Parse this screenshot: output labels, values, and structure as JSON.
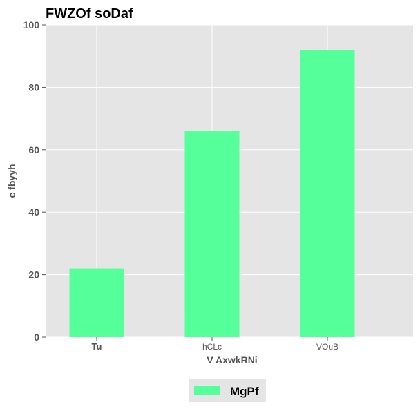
{
  "chart_data": {
    "type": "bar",
    "title": "FWZOf soDaf",
    "xlabel": "V AxwkRNi",
    "ylabel": "c fbyyh",
    "categories": [
      "Tu",
      "hCLc",
      "VOuB"
    ],
    "series": [
      {
        "name": "MgPf",
        "values": [
          22,
          66,
          92
        ],
        "color": "#55ff99"
      }
    ],
    "ylim": [
      0,
      100
    ],
    "yticks": [
      0,
      20,
      40,
      60,
      80,
      100
    ],
    "grid": true,
    "legend_position": "bottom-center",
    "colors": {
      "plot_background": "#e5e5e5",
      "grid": "#ffffff",
      "bar": "#55ff99"
    }
  }
}
